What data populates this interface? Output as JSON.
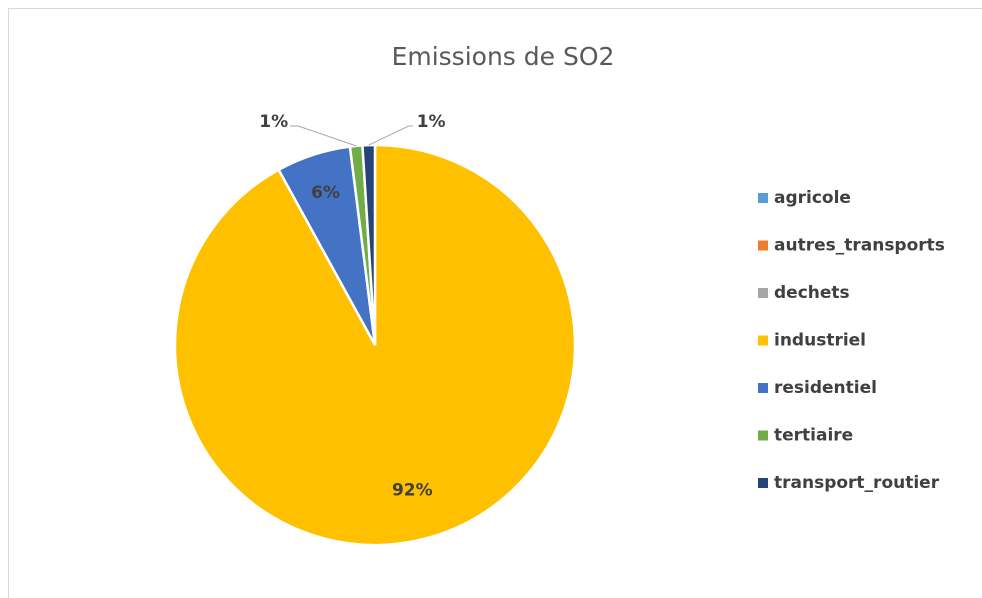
{
  "chart_data": {
    "type": "pie",
    "title": "Emissions de SO2",
    "categories": [
      "agricole",
      "autres_transports",
      "dechets",
      "industriel",
      "residentiel",
      "tertiaire",
      "transport_routier"
    ],
    "values": [
      0,
      0,
      0,
      92,
      6,
      1,
      1
    ],
    "value_labels": [
      null,
      null,
      null,
      "92%",
      "6%",
      "1%",
      "1%"
    ],
    "colors": [
      "#5b9bd5",
      "#ed7d31",
      "#a5a5a5",
      "#ffc000",
      "#4472c4",
      "#70ad47",
      "#264478"
    ],
    "legend": "right"
  }
}
